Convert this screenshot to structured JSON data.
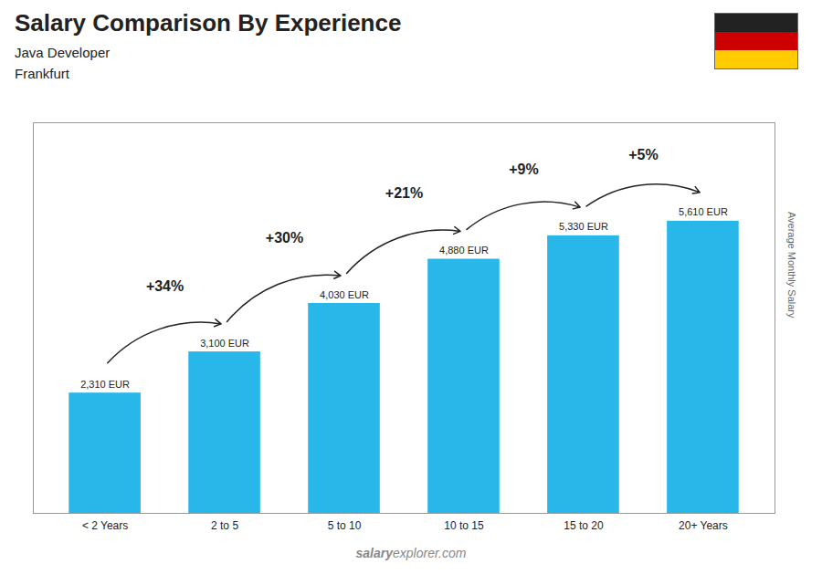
{
  "chart_data": {
    "type": "bar",
    "title": "Salary Comparison By Experience",
    "subtitle": [
      "Java Developer",
      "Frankfurt"
    ],
    "ylabel": "Average Monthly Salary",
    "categories": [
      "< 2 Years",
      "2 to 5",
      "5 to 10",
      "10 to 15",
      "15 to 20",
      "20+ Years"
    ],
    "values": [
      2310,
      3100,
      4030,
      4880,
      5330,
      5610
    ],
    "value_labels": [
      "2,310 EUR",
      "3,100 EUR",
      "4,030 EUR",
      "4,880 EUR",
      "5,330 EUR",
      "5,610 EUR"
    ],
    "data_labels": true,
    "color": "#29b6e8",
    "ylim": [
      0,
      7500
    ],
    "tick_labels": "x",
    "annotations": [
      "+34%",
      "+30%",
      "+21%",
      "+9%",
      "+5%"
    ],
    "watermark": [
      "salary",
      "explorer.com"
    ],
    "flag_colors": [
      "#222222",
      "#cc0000",
      "#ffcc00"
    ]
  }
}
